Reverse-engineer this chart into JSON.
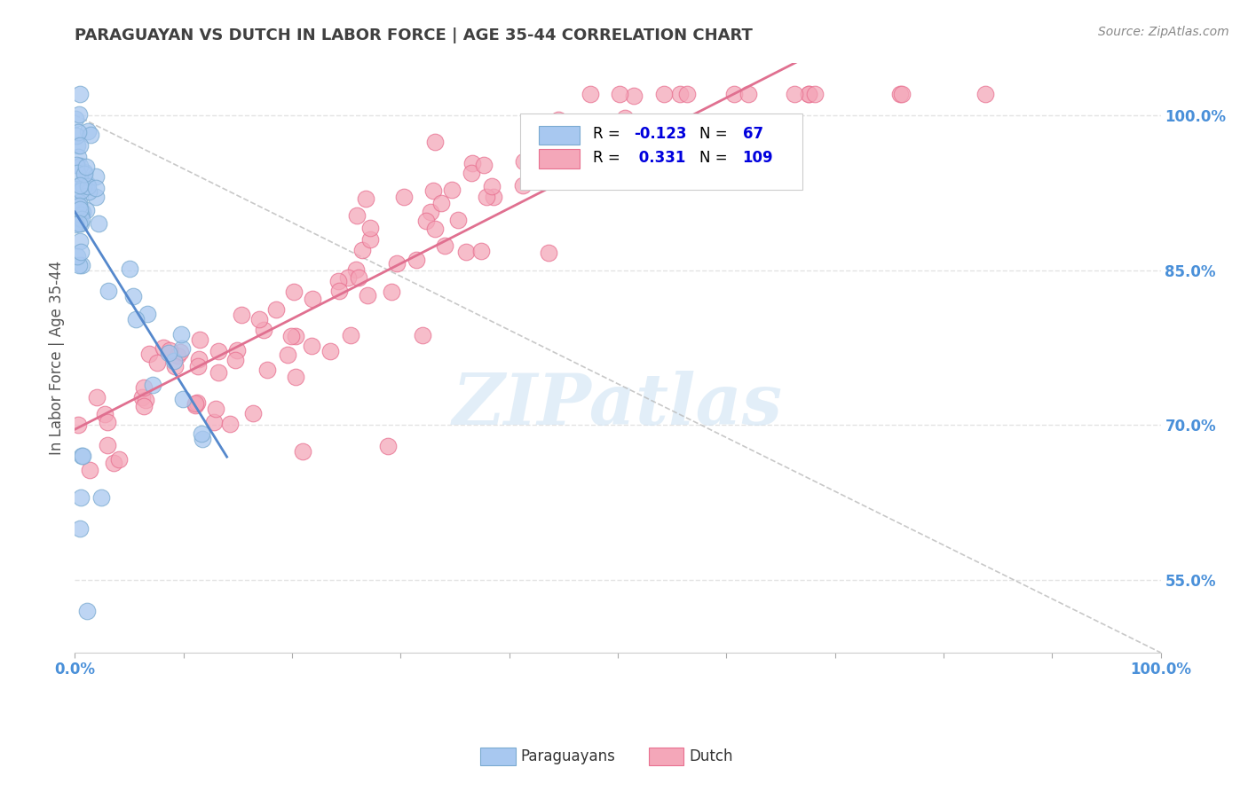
{
  "title": "PARAGUAYAN VS DUTCH IN LABOR FORCE | AGE 35-44 CORRELATION CHART",
  "source": "Source: ZipAtlas.com",
  "ylabel": "In Labor Force | Age 35-44",
  "xlim": [
    0.0,
    1.0
  ],
  "ylim": [
    0.48,
    1.05
  ],
  "ytick_positions": [
    0.55,
    0.7,
    0.85,
    1.0
  ],
  "ytick_labels": [
    "55.0%",
    "70.0%",
    "85.0%",
    "100.0%"
  ],
  "paraguayan_R": -0.123,
  "paraguayan_N": 67,
  "dutch_R": 0.331,
  "dutch_N": 109,
  "scatter_blue_color": "#a8c8f0",
  "scatter_pink_color": "#f4a7b9",
  "scatter_blue_edge": "#7aaad0",
  "scatter_pink_edge": "#e87090",
  "line_blue_color": "#5588cc",
  "line_pink_color": "#e07090",
  "legend_label_paraguayan": "Paraguayans",
  "legend_label_dutch": "Dutch",
  "title_color": "#404040",
  "axis_tick_color": "#4a90d9",
  "legend_R_color": "#0000dd",
  "watermark_color": "#d0e4f4",
  "background_color": "#ffffff",
  "grid_color": "#dddddd"
}
